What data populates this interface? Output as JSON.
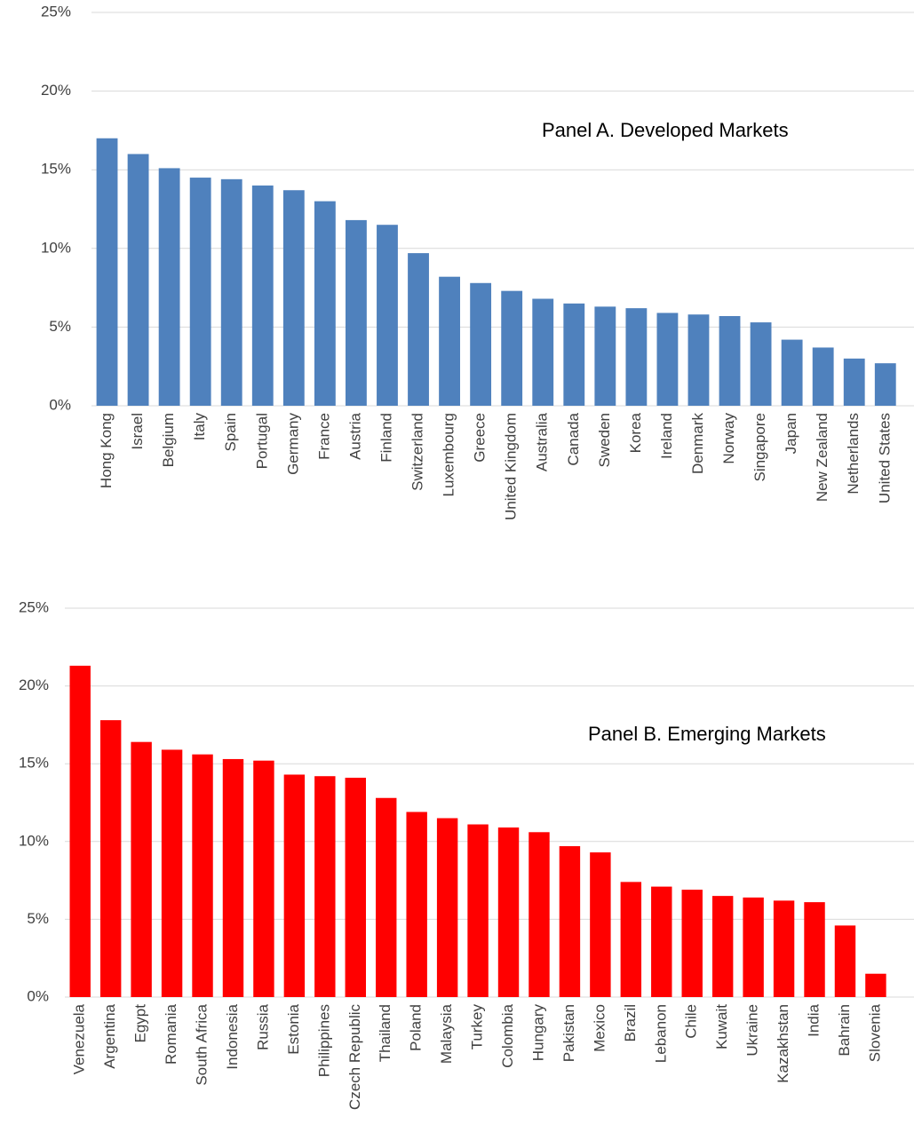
{
  "chart_data": [
    {
      "type": "bar",
      "annotation": "Panel A. Developed Markets",
      "color": "#4f81bd",
      "grid": true,
      "categories": [
        "Hong Kong",
        "Israel",
        "Belgium",
        "Italy",
        "Spain",
        "Portugal",
        "Germany",
        "France",
        "Austria",
        "Finland",
        "Switzerland",
        "Luxembourg",
        "Greece",
        "United Kingdom",
        "Australia",
        "Canada",
        "Sweden",
        "Korea",
        "Ireland",
        "Denmark",
        "Norway",
        "Singapore",
        "Japan",
        "New Zealand",
        "Netherlands",
        "United States"
      ],
      "values": [
        17.0,
        16.0,
        15.1,
        14.5,
        14.4,
        14.0,
        13.7,
        13.0,
        11.8,
        11.5,
        9.7,
        8.2,
        7.8,
        7.3,
        6.8,
        6.5,
        6.3,
        6.2,
        5.9,
        5.8,
        5.7,
        5.3,
        4.2,
        3.7,
        3.0,
        2.7
      ],
      "ylim": [
        0,
        25
      ],
      "yticks": [
        {
          "value": 0,
          "label": "0%"
        },
        {
          "value": 5,
          "label": "5%"
        },
        {
          "value": 10,
          "label": "10%"
        },
        {
          "value": 15,
          "label": "15%"
        },
        {
          "value": 20,
          "label": "20%"
        },
        {
          "value": 25,
          "label": "25%"
        }
      ]
    },
    {
      "type": "bar",
      "annotation": "Panel B. Emerging Markets",
      "color": "#ff0000",
      "grid": true,
      "categories": [
        "Venezuela",
        "Argentina",
        "Egypt",
        "Romania",
        "South Africa",
        "Indonesia",
        "Russia",
        "Estonia",
        "Philippines",
        "Czech Republic",
        "Thailand",
        "Poland",
        "Malaysia",
        "Turkey",
        "Colombia",
        "Hungary",
        "Pakistan",
        "Mexico",
        "Brazil",
        "Lebanon",
        "Chile",
        "Kuwait",
        "Ukraine",
        "Kazakhstan",
        "India",
        "Bahrain",
        "Slovenia"
      ],
      "values": [
        21.3,
        17.8,
        16.4,
        15.9,
        15.6,
        15.3,
        15.2,
        14.3,
        14.2,
        14.1,
        12.8,
        11.9,
        11.5,
        11.1,
        10.9,
        10.6,
        9.7,
        9.3,
        7.4,
        7.1,
        6.9,
        6.5,
        6.4,
        6.2,
        6.1,
        4.6,
        1.5
      ],
      "ylim": [
        0,
        25
      ],
      "yticks": [
        {
          "value": 0,
          "label": "0%"
        },
        {
          "value": 5,
          "label": "5%"
        },
        {
          "value": 10,
          "label": "10%"
        },
        {
          "value": 15,
          "label": "15%"
        },
        {
          "value": 20,
          "label": "20%"
        },
        {
          "value": 25,
          "label": "25%"
        }
      ]
    }
  ]
}
